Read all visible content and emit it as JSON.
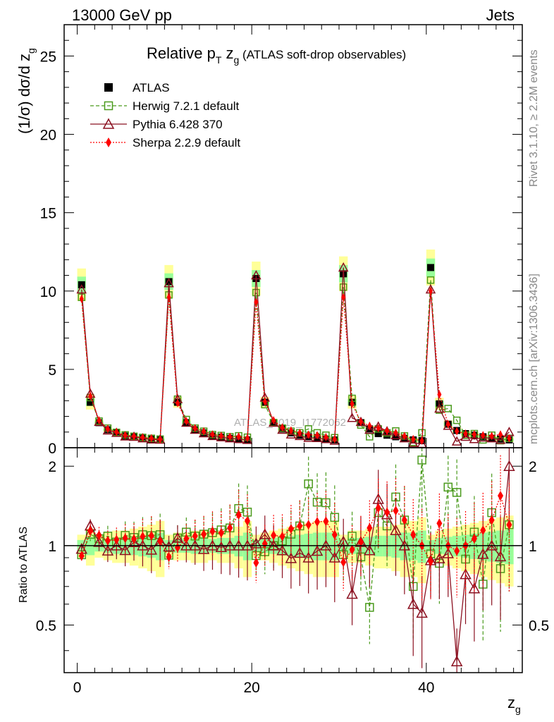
{
  "header": {
    "left": "13000 GeV pp",
    "right": "Jets"
  },
  "side_labels": {
    "rivet": "Rivet 3.1.10, ≥ 2.2M events",
    "mcplots": "mcplots.cern.ch [arXiv:1306.3436]"
  },
  "title": {
    "main": "Relative p",
    "main_sub": "T",
    "mid": " z",
    "mid_sub": "g",
    "rest": " (ATLAS soft-drop observables)"
  },
  "watermark": "ATLAS_2019_I1772062",
  "chart_data": {
    "type": "scatter",
    "x_axis": {
      "label": "z",
      "label_sub": "g",
      "range": [
        -1.5,
        51
      ],
      "ticks": [
        0,
        20,
        40
      ]
    },
    "top_panel": {
      "ylabel": "(1/σ) dσ/d z",
      "ylabel_sub": "g",
      "ylim": [
        0,
        27
      ],
      "ticks": [
        0,
        5,
        10,
        15,
        20,
        25
      ]
    },
    "ratio_panel": {
      "ylabel": "Ratio to ATLAS",
      "ylim": [
        0.33,
        2.35
      ],
      "ticks": [
        0.5,
        1,
        2
      ],
      "reference_line": 1
    },
    "legend": [
      {
        "name": "ATLAS",
        "color": "#000000",
        "marker": "square-filled",
        "line": "none"
      },
      {
        "name": "Herwig 7.2.1 default",
        "color": "#4a9a1c",
        "marker": "square-open",
        "line": "dashed"
      },
      {
        "name": "Pythia 6.428 370",
        "color": "#8b1020",
        "marker": "triangle-open",
        "line": "solid"
      },
      {
        "name": "Sherpa 2.2.9 default",
        "color": "#ff0000",
        "marker": "diamond-filled",
        "line": "dotted"
      }
    ],
    "x": [
      0.5,
      1.5,
      2.5,
      3.5,
      4.5,
      5.5,
      6.5,
      7.5,
      8.5,
      9.5,
      10.5,
      11.5,
      12.5,
      13.5,
      14.5,
      15.5,
      16.5,
      17.5,
      18.5,
      19.5,
      20.5,
      21.5,
      22.5,
      23.5,
      24.5,
      25.5,
      26.5,
      27.5,
      28.5,
      29.5,
      30.5,
      31.5,
      32.5,
      33.5,
      34.5,
      35.5,
      36.5,
      37.5,
      38.5,
      39.5,
      40.5,
      41.5,
      42.5,
      43.5,
      44.5,
      45.5,
      46.5,
      47.5,
      48.5,
      49.5
    ],
    "series": [
      {
        "name": "ATLAS",
        "values": [
          10.4,
          2.9,
          1.6,
          1.15,
          0.95,
          0.75,
          0.68,
          0.6,
          0.55,
          0.5,
          10.6,
          2.9,
          1.6,
          1.15,
          0.95,
          0.75,
          0.68,
          0.6,
          0.55,
          0.5,
          10.8,
          2.9,
          1.6,
          1.2,
          0.95,
          0.8,
          0.7,
          0.65,
          0.55,
          0.5,
          11.1,
          2.9,
          1.6,
          1.2,
          0.9,
          0.8,
          0.7,
          0.6,
          0.5,
          0.45,
          11.5,
          2.8,
          1.5,
          1.1,
          0.9,
          0.8,
          0.7,
          0.6,
          0.55,
          0.5
        ]
      },
      {
        "name": "Herwig 7.2.1 default",
        "values": [
          9.6,
          3.2,
          1.7,
          1.25,
          0.98,
          0.82,
          0.73,
          0.66,
          0.6,
          0.55,
          9.75,
          3.1,
          1.8,
          1.25,
          1.05,
          0.84,
          0.78,
          0.7,
          0.76,
          0.67,
          9.9,
          2.75,
          1.6,
          1.25,
          1.05,
          0.95,
          1.2,
          0.95,
          0.8,
          0.64,
          10.25,
          3.15,
          1.45,
          0.7,
          1.2,
          0.95,
          1.07,
          0.75,
          0.35,
          0.95,
          10.7,
          2.4,
          2.5,
          1.75,
          0.8,
          0.9,
          0.5,
          0.8,
          0.45,
          0.6
        ]
      },
      {
        "name": "Pythia 6.428 370",
        "values": [
          10.1,
          3.45,
          1.65,
          1.1,
          0.95,
          0.72,
          0.7,
          0.6,
          0.53,
          0.52,
          10.5,
          3.1,
          1.6,
          1.15,
          0.92,
          0.75,
          0.67,
          0.6,
          0.55,
          0.5,
          11.0,
          3.2,
          1.6,
          1.15,
          0.85,
          0.75,
          0.63,
          0.62,
          0.55,
          0.45,
          11.5,
          1.9,
          1.65,
          1.15,
          1.35,
          1.05,
          0.8,
          0.6,
          0.3,
          0.25,
          10.1,
          2.5,
          1.4,
          0.4,
          0.7,
          0.55,
          0.65,
          0.6,
          0.5,
          1.0
        ]
      },
      {
        "name": "Sherpa 2.2.9 default",
        "values": [
          9.5,
          3.3,
          1.75,
          1.2,
          1.0,
          0.8,
          0.72,
          0.65,
          0.6,
          0.52,
          9.6,
          2.85,
          1.7,
          1.25,
          1.05,
          0.85,
          0.76,
          0.7,
          0.72,
          0.62,
          9.3,
          2.95,
          1.75,
          1.3,
          1.1,
          0.95,
          0.84,
          0.8,
          0.68,
          0.55,
          9.6,
          2.8,
          1.65,
          1.4,
          1.25,
          1.07,
          0.95,
          0.75,
          0.55,
          0.45,
          10.0,
          3.4,
          1.5,
          1.05,
          0.9,
          0.85,
          0.8,
          0.75,
          0.85,
          0.6
        ]
      }
    ],
    "uncertainty_band_relative": [
      0.05,
      0.08,
      0.05,
      0.06,
      0.07,
      0.07,
      0.08,
      0.09,
      0.1,
      0.12,
      0.05,
      0.06,
      0.06,
      0.07,
      0.07,
      0.06,
      0.07,
      0.07,
      0.09,
      0.12,
      0.05,
      0.06,
      0.07,
      0.08,
      0.09,
      0.1,
      0.11,
      0.12,
      0.12,
      0.12,
      0.05,
      0.07,
      0.07,
      0.08,
      0.09,
      0.09,
      0.1,
      0.12,
      0.12,
      0.14,
      0.05,
      0.07,
      0.08,
      0.09,
      0.1,
      0.11,
      0.12,
      0.13,
      0.14,
      0.15
    ]
  }
}
